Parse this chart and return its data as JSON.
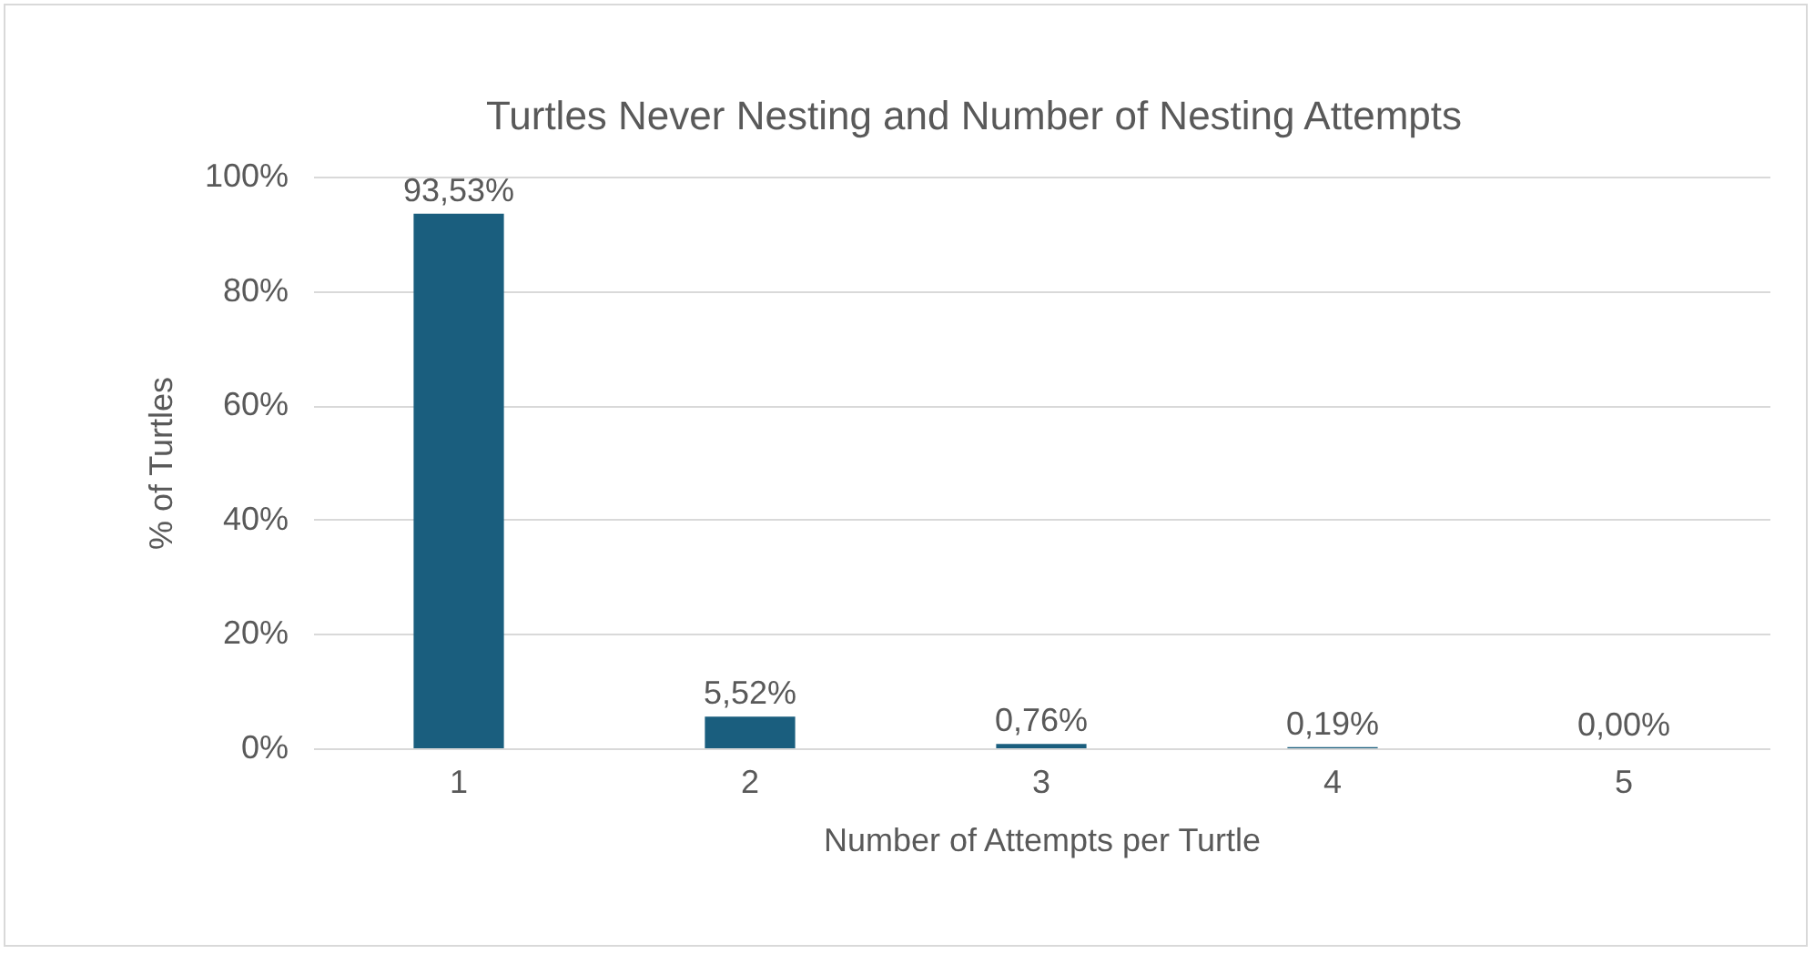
{
  "chart_data": {
    "type": "bar",
    "title": "Turtles Never Nesting and Number of Nesting Attempts",
    "xlabel": "Number of Attempts per Turtle",
    "ylabel": "% of Turtles",
    "categories": [
      "1",
      "2",
      "3",
      "4",
      "5"
    ],
    "values": [
      93.53,
      5.52,
      0.76,
      0.19,
      0.0
    ],
    "value_labels": [
      "93,53%",
      "5,52%",
      "0,76%",
      "0,19%",
      "0,00%"
    ],
    "color": "#1a5e7e",
    "ylim": [
      0,
      100
    ],
    "yticks": [
      {
        "value": 0,
        "label": "0%"
      },
      {
        "value": 20,
        "label": "20%"
      },
      {
        "value": 40,
        "label": "40%"
      },
      {
        "value": 60,
        "label": "60%"
      },
      {
        "value": 80,
        "label": "80%"
      },
      {
        "value": 100,
        "label": "100%"
      }
    ],
    "grid": "y"
  }
}
